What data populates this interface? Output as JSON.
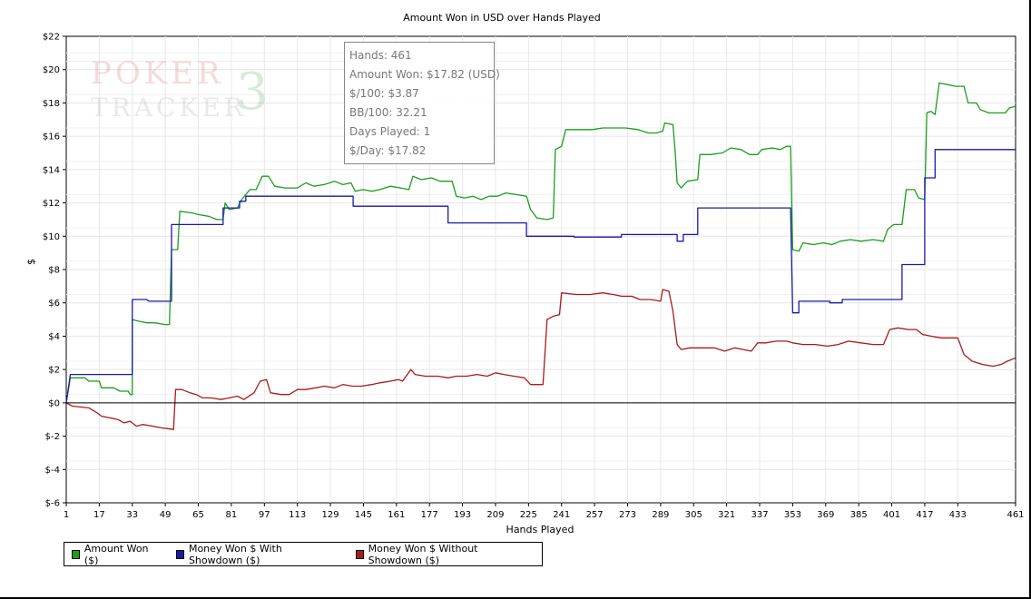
{
  "chart_data": {
    "type": "line",
    "title": "Amount Won in USD over Hands Played",
    "xlabel": "Hands Played",
    "ylabel": "$",
    "xlim": [
      1,
      461
    ],
    "ylim": [
      -6,
      22
    ],
    "grid": true,
    "legend_position": "bottom-left",
    "x_ticks": [
      1,
      17,
      33,
      49,
      65,
      81,
      97,
      113,
      129,
      145,
      161,
      177,
      193,
      209,
      225,
      241,
      257,
      273,
      289,
      305,
      321,
      337,
      353,
      369,
      385,
      401,
      417,
      433,
      461
    ],
    "y_ticks": [
      -6,
      -4,
      -2,
      0,
      2,
      4,
      6,
      8,
      10,
      12,
      14,
      16,
      18,
      20,
      22
    ],
    "y_tick_labels": [
      "$-6",
      "$-4",
      "$-2",
      "$0",
      "$2",
      "$4",
      "$6",
      "$8",
      "$10",
      "$12",
      "$14",
      "$16",
      "$18",
      "$20",
      "$22"
    ],
    "series": [
      {
        "name": "Amount Won ($)",
        "color": "#1a9e1a",
        "points": [
          [
            1,
            0
          ],
          [
            3,
            1.5
          ],
          [
            10,
            1.5
          ],
          [
            12,
            1.3
          ],
          [
            17,
            1.3
          ],
          [
            18,
            0.9
          ],
          [
            24,
            0.9
          ],
          [
            27,
            0.7
          ],
          [
            31,
            0.7
          ],
          [
            32,
            0.5
          ],
          [
            33,
            0.5
          ],
          [
            33,
            5.0
          ],
          [
            36,
            4.9
          ],
          [
            40,
            4.8
          ],
          [
            44,
            4.8
          ],
          [
            49,
            4.7
          ],
          [
            51,
            4.7
          ],
          [
            52,
            9.2
          ],
          [
            55,
            9.2
          ],
          [
            56,
            11.5
          ],
          [
            62,
            11.4
          ],
          [
            65,
            11.3
          ],
          [
            70,
            11.2
          ],
          [
            74,
            11.0
          ],
          [
            77,
            11.0
          ],
          [
            78,
            12.0
          ],
          [
            80,
            11.6
          ],
          [
            84,
            11.7
          ],
          [
            86,
            12.2
          ],
          [
            88,
            12.5
          ],
          [
            90,
            12.8
          ],
          [
            93,
            12.8
          ],
          [
            96,
            13.6
          ],
          [
            99,
            13.6
          ],
          [
            102,
            13.0
          ],
          [
            107,
            12.9
          ],
          [
            113,
            12.9
          ],
          [
            117,
            13.2
          ],
          [
            121,
            13.0
          ],
          [
            126,
            13.1
          ],
          [
            131,
            13.3
          ],
          [
            135,
            13.1
          ],
          [
            139,
            13.2
          ],
          [
            141,
            12.7
          ],
          [
            145,
            12.8
          ],
          [
            149,
            12.7
          ],
          [
            153,
            12.8
          ],
          [
            158,
            13.0
          ],
          [
            163,
            12.9
          ],
          [
            167,
            12.8
          ],
          [
            169,
            13.6
          ],
          [
            173,
            13.4
          ],
          [
            178,
            13.5
          ],
          [
            182,
            13.3
          ],
          [
            188,
            13.3
          ],
          [
            190,
            12.4
          ],
          [
            194,
            12.3
          ],
          [
            198,
            12.4
          ],
          [
            202,
            12.2
          ],
          [
            206,
            12.4
          ],
          [
            210,
            12.4
          ],
          [
            214,
            12.6
          ],
          [
            219,
            12.5
          ],
          [
            224,
            12.4
          ],
          [
            226,
            11.6
          ],
          [
            229,
            11.1
          ],
          [
            234,
            11.0
          ],
          [
            237,
            11.1
          ],
          [
            238,
            15.2
          ],
          [
            241,
            15.4
          ],
          [
            243,
            16.4
          ],
          [
            250,
            16.4
          ],
          [
            256,
            16.4
          ],
          [
            261,
            16.5
          ],
          [
            267,
            16.5
          ],
          [
            272,
            16.5
          ],
          [
            278,
            16.4
          ],
          [
            283,
            16.2
          ],
          [
            287,
            16.2
          ],
          [
            290,
            16.3
          ],
          [
            291,
            16.8
          ],
          [
            295,
            16.7
          ],
          [
            296,
            15.2
          ],
          [
            297,
            13.2
          ],
          [
            299,
            12.9
          ],
          [
            302,
            13.3
          ],
          [
            307,
            13.4
          ],
          [
            308,
            14.9
          ],
          [
            313,
            14.9
          ],
          [
            319,
            15.0
          ],
          [
            323,
            15.3
          ],
          [
            328,
            15.2
          ],
          [
            332,
            14.9
          ],
          [
            336,
            14.9
          ],
          [
            338,
            15.2
          ],
          [
            343,
            15.3
          ],
          [
            347,
            15.2
          ],
          [
            350,
            15.4
          ],
          [
            352,
            15.4
          ],
          [
            353,
            9.2
          ],
          [
            356,
            9.1
          ],
          [
            358,
            9.6
          ],
          [
            363,
            9.5
          ],
          [
            368,
            9.6
          ],
          [
            372,
            9.5
          ],
          [
            376,
            9.7
          ],
          [
            381,
            9.8
          ],
          [
            386,
            9.7
          ],
          [
            392,
            9.8
          ],
          [
            397,
            9.7
          ],
          [
            399,
            10.4
          ],
          [
            402,
            10.7
          ],
          [
            406,
            10.7
          ],
          [
            408,
            12.8
          ],
          [
            412,
            12.8
          ],
          [
            414,
            12.3
          ],
          [
            417,
            12.2
          ],
          [
            418,
            17.4
          ],
          [
            420,
            17.5
          ],
          [
            422,
            17.3
          ],
          [
            424,
            19.2
          ],
          [
            428,
            19.1
          ],
          [
            432,
            19.0
          ],
          [
            436,
            19.0
          ],
          [
            438,
            18.0
          ],
          [
            442,
            18.0
          ],
          [
            444,
            17.6
          ],
          [
            448,
            17.4
          ],
          [
            452,
            17.4
          ],
          [
            456,
            17.4
          ],
          [
            458,
            17.7
          ],
          [
            461,
            17.8
          ]
        ]
      },
      {
        "name": "Money Won $ With Showdown ($)",
        "color": "#1a1aaa",
        "points": [
          [
            1,
            0
          ],
          [
            3,
            1.7
          ],
          [
            33,
            1.7
          ],
          [
            33,
            6.2
          ],
          [
            40,
            6.2
          ],
          [
            41,
            6.1
          ],
          [
            52,
            6.1
          ],
          [
            52,
            10.7
          ],
          [
            77,
            10.7
          ],
          [
            77,
            11.7
          ],
          [
            85,
            11.7
          ],
          [
            85,
            12.1
          ],
          [
            88,
            12.1
          ],
          [
            88,
            12.4
          ],
          [
            140,
            12.4
          ],
          [
            140,
            11.8
          ],
          [
            186,
            11.8
          ],
          [
            186,
            10.8
          ],
          [
            224,
            10.8
          ],
          [
            224,
            10.0
          ],
          [
            247,
            10.0
          ],
          [
            247,
            9.95
          ],
          [
            270,
            9.95
          ],
          [
            270,
            10.1
          ],
          [
            297,
            10.1
          ],
          [
            297,
            9.7
          ],
          [
            300,
            9.7
          ],
          [
            300,
            10.1
          ],
          [
            307,
            10.1
          ],
          [
            307,
            11.7
          ],
          [
            352,
            11.7
          ],
          [
            353,
            5.4
          ],
          [
            356,
            5.4
          ],
          [
            356,
            6.1
          ],
          [
            371,
            6.1
          ],
          [
            371,
            6.0
          ],
          [
            377,
            6.0
          ],
          [
            377,
            6.2
          ],
          [
            406,
            6.2
          ],
          [
            406,
            8.3
          ],
          [
            417,
            8.3
          ],
          [
            417,
            13.5
          ],
          [
            422,
            13.5
          ],
          [
            422,
            15.2
          ],
          [
            461,
            15.2
          ]
        ]
      },
      {
        "name": "Money Won $ Without Showdown ($)",
        "color": "#aa1a1a",
        "points": [
          [
            1,
            0
          ],
          [
            4,
            -0.2
          ],
          [
            12,
            -0.3
          ],
          [
            16,
            -0.6
          ],
          [
            18,
            -0.8
          ],
          [
            22,
            -0.9
          ],
          [
            26,
            -1.0
          ],
          [
            29,
            -1.2
          ],
          [
            32,
            -1.1
          ],
          [
            35,
            -1.4
          ],
          [
            38,
            -1.3
          ],
          [
            43,
            -1.4
          ],
          [
            47,
            -1.5
          ],
          [
            53,
            -1.6
          ],
          [
            54,
            0.8
          ],
          [
            57,
            0.8
          ],
          [
            61,
            0.6
          ],
          [
            64,
            0.5
          ],
          [
            67,
            0.3
          ],
          [
            71,
            0.3
          ],
          [
            76,
            0.2
          ],
          [
            80,
            0.3
          ],
          [
            84,
            0.4
          ],
          [
            87,
            0.2
          ],
          [
            92,
            0.6
          ],
          [
            95,
            1.3
          ],
          [
            98,
            1.4
          ],
          [
            100,
            0.6
          ],
          [
            105,
            0.5
          ],
          [
            109,
            0.5
          ],
          [
            113,
            0.8
          ],
          [
            117,
            0.8
          ],
          [
            122,
            0.9
          ],
          [
            126,
            1.0
          ],
          [
            131,
            0.9
          ],
          [
            135,
            1.1
          ],
          [
            140,
            1.0
          ],
          [
            144,
            1.0
          ],
          [
            149,
            1.1
          ],
          [
            153,
            1.2
          ],
          [
            158,
            1.3
          ],
          [
            162,
            1.4
          ],
          [
            164,
            1.3
          ],
          [
            168,
            2.0
          ],
          [
            170,
            1.7
          ],
          [
            175,
            1.6
          ],
          [
            181,
            1.6
          ],
          [
            186,
            1.5
          ],
          [
            190,
            1.6
          ],
          [
            195,
            1.6
          ],
          [
            200,
            1.7
          ],
          [
            205,
            1.6
          ],
          [
            209,
            1.8
          ],
          [
            213,
            1.7
          ],
          [
            218,
            1.6
          ],
          [
            223,
            1.5
          ],
          [
            226,
            1.1
          ],
          [
            232,
            1.1
          ],
          [
            234,
            5.0
          ],
          [
            237,
            5.2
          ],
          [
            240,
            5.3
          ],
          [
            241,
            6.6
          ],
          [
            248,
            6.5
          ],
          [
            255,
            6.5
          ],
          [
            261,
            6.6
          ],
          [
            266,
            6.5
          ],
          [
            270,
            6.4
          ],
          [
            275,
            6.4
          ],
          [
            279,
            6.2
          ],
          [
            284,
            6.2
          ],
          [
            289,
            6.1
          ],
          [
            290,
            6.8
          ],
          [
            293,
            6.7
          ],
          [
            295,
            5.5
          ],
          [
            297,
            3.5
          ],
          [
            299,
            3.2
          ],
          [
            303,
            3.3
          ],
          [
            310,
            3.3
          ],
          [
            315,
            3.3
          ],
          [
            320,
            3.1
          ],
          [
            325,
            3.3
          ],
          [
            329,
            3.2
          ],
          [
            333,
            3.1
          ],
          [
            336,
            3.6
          ],
          [
            340,
            3.6
          ],
          [
            345,
            3.7
          ],
          [
            350,
            3.7
          ],
          [
            353,
            3.6
          ],
          [
            358,
            3.5
          ],
          [
            364,
            3.5
          ],
          [
            370,
            3.4
          ],
          [
            375,
            3.5
          ],
          [
            380,
            3.7
          ],
          [
            386,
            3.6
          ],
          [
            392,
            3.5
          ],
          [
            397,
            3.5
          ],
          [
            400,
            4.4
          ],
          [
            404,
            4.5
          ],
          [
            409,
            4.4
          ],
          [
            413,
            4.4
          ],
          [
            416,
            4.1
          ],
          [
            420,
            4.0
          ],
          [
            425,
            3.9
          ],
          [
            429,
            3.9
          ],
          [
            433,
            3.9
          ],
          [
            436,
            2.9
          ],
          [
            440,
            2.5
          ],
          [
            445,
            2.3
          ],
          [
            450,
            2.2
          ],
          [
            454,
            2.3
          ],
          [
            457,
            2.5
          ],
          [
            461,
            2.7
          ]
        ]
      }
    ]
  },
  "tooltip": {
    "hands": "Hands: 461",
    "amount_won": "Amount Won: $17.82 (USD)",
    "per_100": "$/100: $3.87",
    "bb_100": "BB/100: 32.21",
    "days_played": "Days Played: 1",
    "per_day": "$/Day: $17.82"
  },
  "legend": {
    "items": [
      {
        "label": "Amount Won ($)",
        "color": "#1a9e1a"
      },
      {
        "label": "Money Won $ With Showdown ($)",
        "color": "#1a1aaa"
      },
      {
        "label": "Money Won $ Without Showdown ($)",
        "color": "#aa1a1a"
      }
    ]
  },
  "watermark": {
    "line1": "POKER",
    "line2": "TRACKER",
    "digit": "3"
  }
}
